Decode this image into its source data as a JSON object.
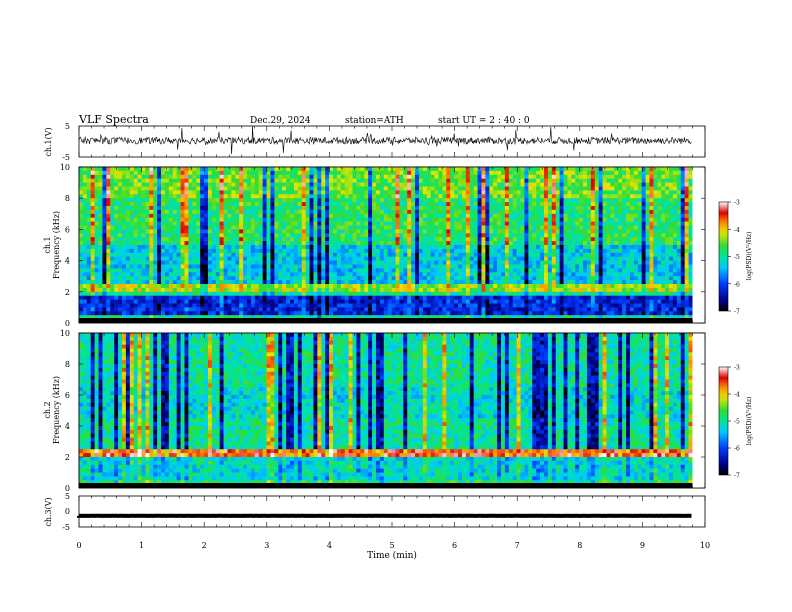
{
  "header": {
    "title": "VLF  Spectra",
    "date": "Dec.29, 2024",
    "station": "station=ATH",
    "start": "start  UT  =   2 : 40 : 0"
  },
  "chart_data": [
    {
      "type": "line",
      "name": "ch1-waveform",
      "ylabel": "ch.1(V)",
      "ylim": [
        -5,
        5
      ],
      "yticks": [
        "5",
        "-5"
      ],
      "xlim": [
        0,
        10
      ],
      "trace_level": 0.3,
      "color": "#000000"
    },
    {
      "type": "heatmap",
      "name": "ch1-spectrogram",
      "ylabel_line1": "ch.1",
      "ylabel_line2": "Frequency  (kHz)",
      "ylim": [
        0,
        10
      ],
      "yticks": [
        "0",
        "2",
        "4",
        "6",
        "8",
        "10"
      ],
      "xlim": [
        0,
        9.8
      ],
      "colorbar": {
        "label": "log(PSD)(V²/Hz)",
        "range": [
          -7,
          -3
        ],
        "ticks": [
          "-3",
          "-4",
          "-5",
          "-6",
          "-7"
        ]
      }
    },
    {
      "type": "heatmap",
      "name": "ch2-spectrogram",
      "ylabel_line1": "ch.2",
      "ylabel_line2": "Frequency  (kHz)",
      "ylim": [
        0,
        10
      ],
      "yticks": [
        "0",
        "2",
        "4",
        "6",
        "8",
        "10"
      ],
      "xlim": [
        0,
        9.8
      ],
      "colorbar": {
        "label": "log(PSD)(V²/Hz)",
        "range": [
          -7,
          -3
        ],
        "ticks": [
          "-3",
          "-4",
          "-5",
          "-6",
          "-7"
        ]
      }
    },
    {
      "type": "line",
      "name": "ch3-waveform",
      "ylabel": "ch.3(V)",
      "ylim": [
        -5,
        5
      ],
      "yticks": [
        "5",
        "0",
        "-5"
      ],
      "xlim": [
        0,
        10
      ],
      "trace_level": -1.4,
      "color": "#000000"
    }
  ],
  "xaxis": {
    "label": "Time  (min)",
    "ticks": [
      "0",
      "1",
      "2",
      "3",
      "4",
      "5",
      "6",
      "7",
      "8",
      "9",
      "10"
    ],
    "range": [
      0,
      10
    ]
  }
}
